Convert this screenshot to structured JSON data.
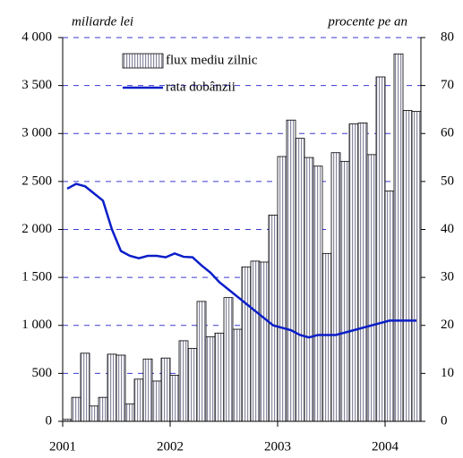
{
  "chart_data": {
    "type": "bar-line",
    "y_label": "miliarde lei",
    "y2_label": "procente pe an",
    "categories": [
      "2001",
      null,
      null,
      null,
      null,
      null,
      null,
      null,
      null,
      null,
      null,
      null,
      "2002",
      null,
      null,
      null,
      null,
      null,
      null,
      null,
      null,
      null,
      null,
      null,
      "2003",
      null,
      null,
      null,
      null,
      null,
      null,
      null,
      null,
      null,
      null,
      null,
      "2004",
      null,
      null,
      null
    ],
    "series": [
      {
        "name": "flux mediu zilnic",
        "color": "#c8c8d8",
        "type": "bar",
        "values": [
          20,
          250,
          710,
          160,
          250,
          700,
          690,
          180,
          440,
          650,
          420,
          660,
          480,
          840,
          760,
          1250,
          880,
          920,
          1290,
          960,
          1610,
          1670,
          1660,
          2150,
          2760,
          3140,
          2950,
          2750,
          2660,
          1750,
          2800,
          2710,
          3100,
          3110,
          2780,
          3590,
          2400,
          3830,
          3240,
          3230
        ]
      },
      {
        "name": "rata dobânzii",
        "color": "#0a1ec8",
        "type": "line",
        "axis": "y2",
        "values": [
          48.5,
          49.5,
          49,
          47.5,
          46,
          40,
          35.5,
          34.5,
          34,
          34.5,
          34.5,
          34.2,
          35,
          34.3,
          34.2,
          32.5,
          31,
          29,
          27.5,
          26,
          24.5,
          23,
          21.5,
          20,
          19.5,
          19,
          18,
          17.5,
          18,
          18,
          18,
          18.5,
          19,
          19.5,
          20,
          20.5,
          21,
          21,
          21,
          21
        ]
      }
    ],
    "ylim": [
      0,
      4000
    ],
    "yticks": [
      0,
      500,
      {
        "value": 1000,
        "label": "1 000"
      },
      {
        "value": 1500,
        "label": "1 500"
      },
      {
        "value": 2000,
        "label": "2 000"
      },
      {
        "value": 2500,
        "label": "2 500"
      },
      {
        "value": 3000,
        "label": "3 000"
      },
      {
        "value": 3500,
        "label": "3 500"
      },
      {
        "value": 4000,
        "label": "4 000"
      }
    ],
    "y2lim": [
      0,
      80
    ],
    "y2ticks": [
      0,
      10,
      20,
      30,
      40,
      50,
      60,
      70,
      80
    ],
    "grid": true
  }
}
